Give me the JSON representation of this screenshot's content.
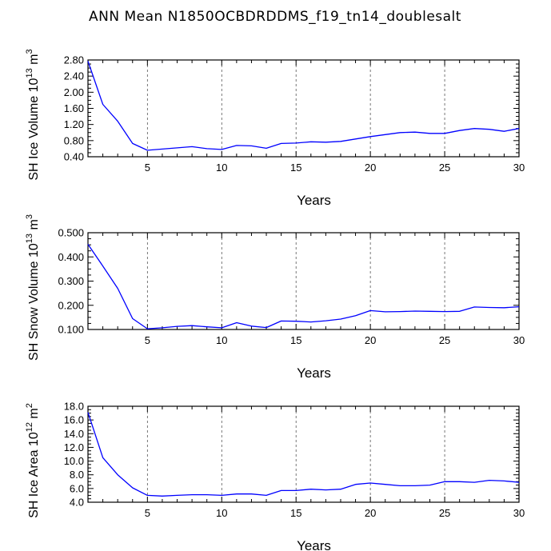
{
  "title": "ANN Mean N1850OCBDRDDMS_f19_tn14_doublesalt",
  "chart_data": [
    {
      "type": "line",
      "ylabel": {
        "base": "SH Ice Volume 10",
        "exp": "13",
        "unit": " m",
        "unit_exp": "3"
      },
      "xlabel": "Years",
      "xlim": [
        1,
        30
      ],
      "ylim": [
        0.4,
        2.8
      ],
      "xticks": [
        5,
        10,
        15,
        20,
        25,
        30
      ],
      "xtick_labels": [
        "5",
        "10",
        "15",
        "20",
        "25",
        "30"
      ],
      "yticks": [
        0.4,
        0.8,
        1.2,
        1.6,
        2.0,
        2.4,
        2.8
      ],
      "ytick_labels": [
        "0.40",
        "0.80",
        "1.20",
        "1.60",
        "2.00",
        "2.40",
        "2.80"
      ],
      "grid": "dashed vertical at x ticks",
      "color": "#0000ff",
      "x": [
        1,
        2,
        3,
        4,
        5,
        6,
        7,
        8,
        9,
        10,
        11,
        12,
        13,
        14,
        15,
        16,
        17,
        18,
        19,
        20,
        21,
        22,
        23,
        24,
        25,
        26,
        27,
        28,
        29,
        30
      ],
      "values": [
        2.77,
        1.7,
        1.28,
        0.73,
        0.56,
        0.59,
        0.62,
        0.65,
        0.6,
        0.58,
        0.68,
        0.67,
        0.61,
        0.73,
        0.74,
        0.77,
        0.76,
        0.78,
        0.84,
        0.9,
        0.95,
        1.0,
        1.01,
        0.98,
        0.98,
        1.05,
        1.1,
        1.08,
        1.03,
        1.1
      ]
    },
    {
      "type": "line",
      "ylabel": {
        "base": "SH Snow Volume 10",
        "exp": "13",
        "unit": " m",
        "unit_exp": "3"
      },
      "xlabel": "Years",
      "xlim": [
        1,
        30
      ],
      "ylim": [
        0.1,
        0.5
      ],
      "xticks": [
        5,
        10,
        15,
        20,
        25,
        30
      ],
      "xtick_labels": [
        "5",
        "10",
        "15",
        "20",
        "25",
        "30"
      ],
      "yticks": [
        0.1,
        0.2,
        0.3,
        0.4,
        0.5
      ],
      "ytick_labels": [
        "0.100",
        "0.200",
        "0.300",
        "0.400",
        "0.500"
      ],
      "grid": "dashed vertical at x ticks",
      "color": "#0000ff",
      "x": [
        1,
        2,
        3,
        4,
        5,
        6,
        7,
        8,
        9,
        10,
        11,
        12,
        13,
        14,
        15,
        16,
        17,
        18,
        19,
        20,
        21,
        22,
        23,
        24,
        25,
        26,
        27,
        28,
        29,
        30
      ],
      "values": [
        0.452,
        0.362,
        0.27,
        0.145,
        0.103,
        0.107,
        0.113,
        0.116,
        0.111,
        0.107,
        0.128,
        0.114,
        0.108,
        0.135,
        0.134,
        0.131,
        0.136,
        0.143,
        0.157,
        0.178,
        0.173,
        0.174,
        0.176,
        0.175,
        0.174,
        0.175,
        0.193,
        0.191,
        0.19,
        0.194
      ]
    },
    {
      "type": "line",
      "ylabel": {
        "base": "SH Ice Area 10",
        "exp": "12",
        "unit": " m",
        "unit_exp": "2"
      },
      "xlabel": "Years",
      "xlim": [
        1,
        30
      ],
      "ylim": [
        4.0,
        18.0
      ],
      "xticks": [
        5,
        10,
        15,
        20,
        25,
        30
      ],
      "xtick_labels": [
        "5",
        "10",
        "15",
        "20",
        "25",
        "30"
      ],
      "yticks": [
        4.0,
        6.0,
        8.0,
        10.0,
        12.0,
        14.0,
        16.0,
        18.0
      ],
      "ytick_labels": [
        "4.0",
        "6.0",
        "8.0",
        "10.0",
        "12.0",
        "14.0",
        "16.0",
        "18.0"
      ],
      "grid": "dashed vertical at x ticks",
      "color": "#0000ff",
      "x": [
        1,
        2,
        3,
        4,
        5,
        6,
        7,
        8,
        9,
        10,
        11,
        12,
        13,
        14,
        15,
        16,
        17,
        18,
        19,
        20,
        21,
        22,
        23,
        24,
        25,
        26,
        27,
        28,
        29,
        30
      ],
      "values": [
        17.1,
        10.5,
        8.0,
        6.1,
        5.0,
        4.9,
        5.0,
        5.1,
        5.1,
        5.0,
        5.2,
        5.2,
        5.0,
        5.7,
        5.7,
        5.9,
        5.8,
        5.9,
        6.6,
        6.8,
        6.6,
        6.4,
        6.4,
        6.5,
        7.0,
        7.0,
        6.9,
        7.2,
        7.1,
        6.9
      ]
    }
  ]
}
